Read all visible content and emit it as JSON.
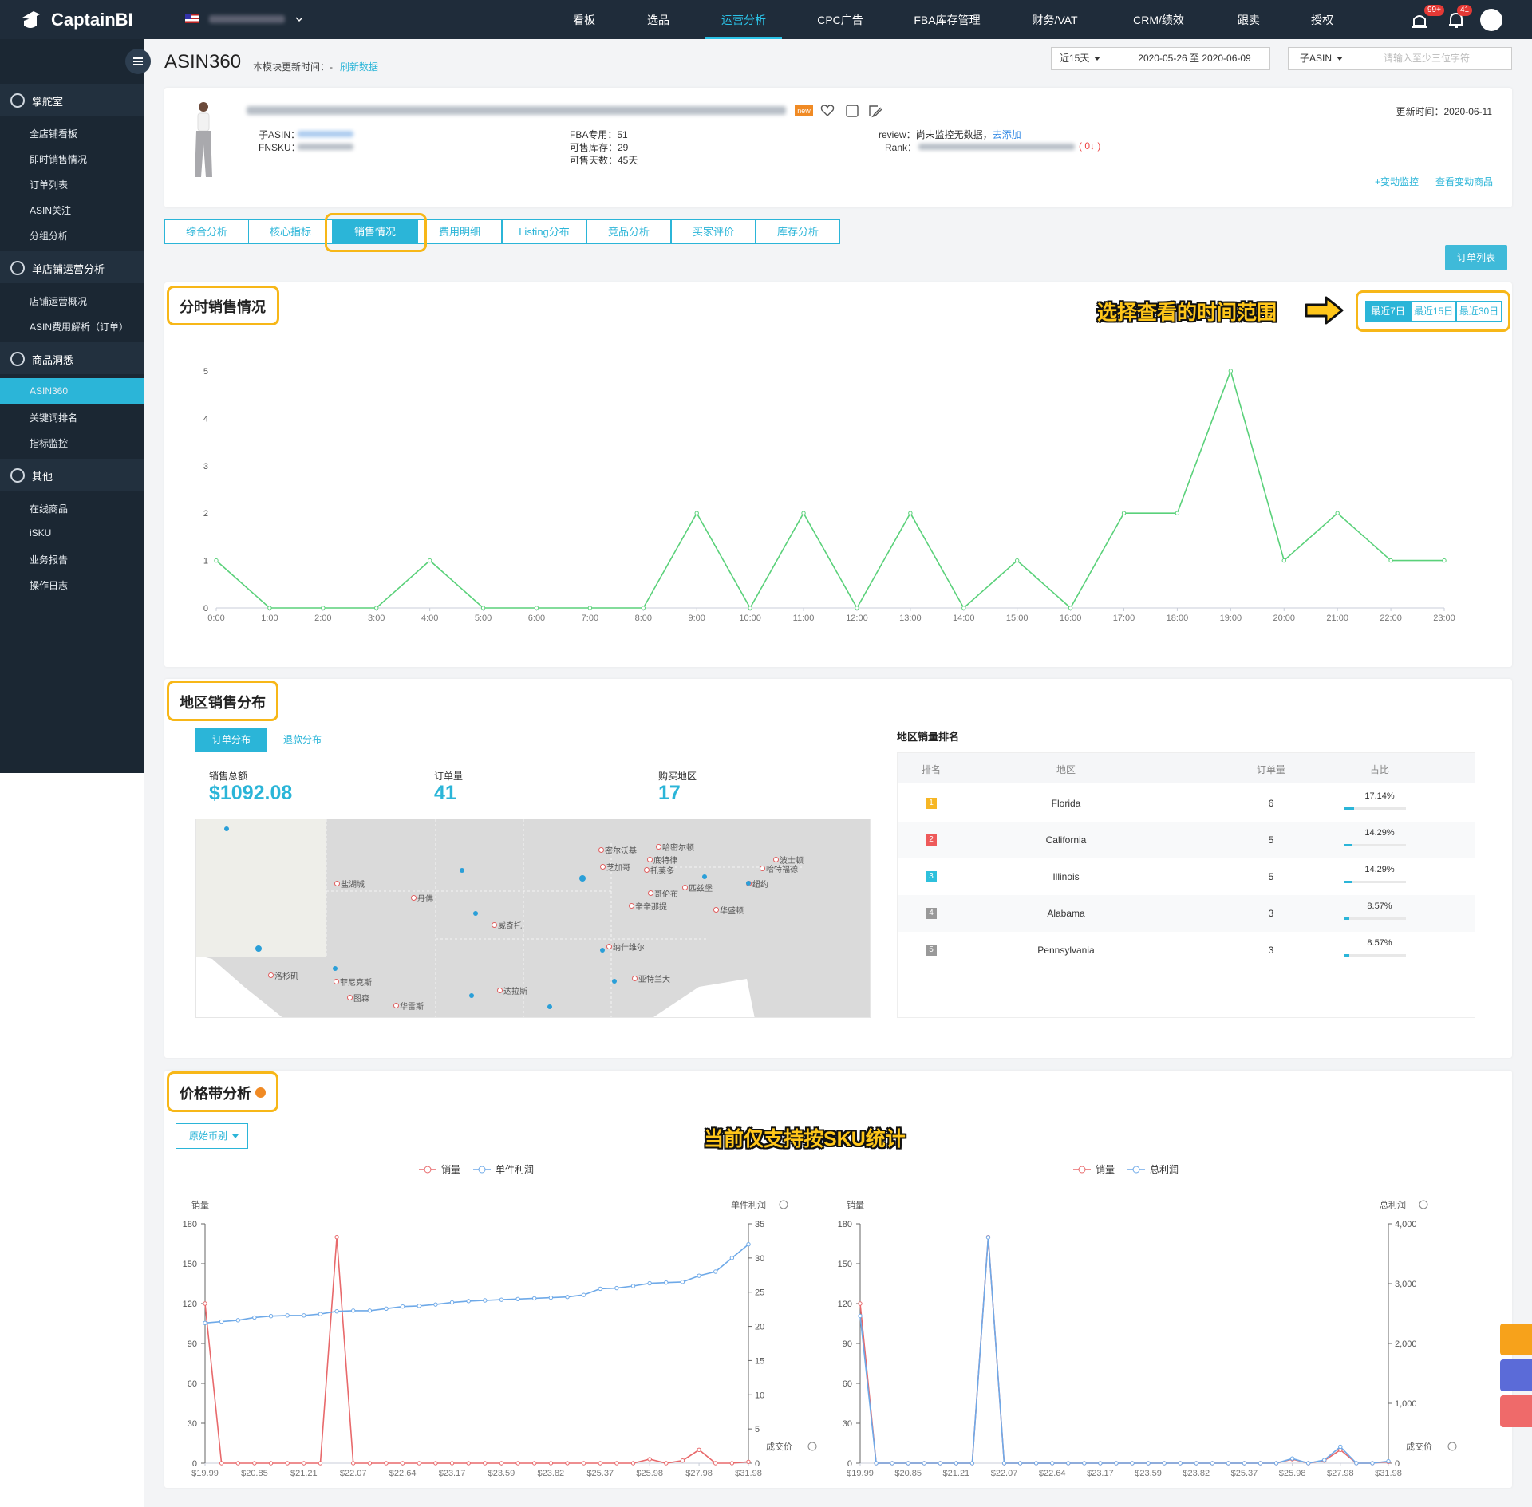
{
  "nav": {
    "logo": "CaptainBI",
    "items": [
      "看板",
      "选品",
      "运营分析",
      "CPC广告",
      "FBA库存管理",
      "财务/VAT",
      "CRM/绩效",
      "跟卖",
      "授权"
    ],
    "active": 2,
    "badges": [
      "99+",
      "41"
    ]
  },
  "sidebar": {
    "groups": [
      {
        "title": "掌舵室",
        "items": [
          "全店铺看板",
          "即时销售情况",
          "订单列表",
          "ASIN关注",
          "分组分析"
        ]
      },
      {
        "title": "单店铺运营分析",
        "items": [
          "店铺运营概况",
          "ASIN费用解析（订单）"
        ]
      },
      {
        "title": "商品洞悉",
        "items": [
          "ASIN360",
          "关键词排名",
          "指标监控"
        ]
      },
      {
        "title": "其他",
        "items": [
          "在线商品",
          "iSKU",
          "业务报告",
          "操作日志"
        ]
      }
    ],
    "active_group": 2,
    "active_item": 0
  },
  "header": {
    "title": "ASIN360",
    "update_label": "本模块更新时间：-",
    "refresh": "刷新数据",
    "range_select": "近15天",
    "date_range": "2020-05-26 至 2020-06-09",
    "asin_select": "子ASIN",
    "search_placeholder": "请输入至少三位字符"
  },
  "product": {
    "badge": "new",
    "asin_label": "子ASIN：",
    "fnsku_label": "FNSKU：",
    "fba": "FBA专用：51",
    "stock": "可售库存：29",
    "days": "可售天数：45天",
    "review": "review：尚未监控无数据，",
    "review_link": "去添加",
    "rank_label": "Rank：",
    "rank_change": "( 0↓ )",
    "updated": "更新时间：2020-06-11",
    "monitor": "+变动监控",
    "changes": "查看变动商品"
  },
  "tabs": {
    "items": [
      "综合分析",
      "核心指标",
      "销售情况",
      "费用明细",
      "Listing分布",
      "竞品分析",
      "买家评价",
      "库存分析"
    ],
    "active": 2
  },
  "order_list_button": "订单列表",
  "hourly": {
    "annotation": "选择查看的时间范围",
    "ranges": [
      "最近7日",
      "最近15日",
      "最近30日"
    ],
    "active": 0
  },
  "region": {
    "title": "地区销售分布",
    "tabs": [
      "订单分布",
      "退款分布"
    ],
    "active": 0,
    "stats": [
      {
        "label": "销售总额",
        "value": "$1092.08"
      },
      {
        "label": "订单量",
        "value": "41"
      },
      {
        "label": "购买地区",
        "value": "17"
      }
    ],
    "map_cities": [
      "密尔沃基",
      "芝加哥",
      "底特律",
      "托莱多",
      "哈密尔顿",
      "波士顿",
      "哈特福德",
      "纽约",
      "匹兹堡",
      "哥伦布",
      "辛辛那提",
      "华盛顿",
      "盐湖城",
      "丹佛",
      "威奇托",
      "纳什维尔",
      "亚特兰大",
      "洛杉矶",
      "菲尼克斯",
      "图森",
      "达拉斯",
      "华雷斯"
    ],
    "ranking": {
      "title": "地区销量排名",
      "columns": [
        "排名",
        "地区",
        "订单量",
        "占比"
      ],
      "rows": [
        {
          "rank": 1,
          "region": "Florida",
          "orders": 6,
          "share": 17.14,
          "share_label": "17.14%"
        },
        {
          "rank": 2,
          "region": "California",
          "orders": 5,
          "share": 14.29,
          "share_label": "14.29%"
        },
        {
          "rank": 3,
          "region": "Illinois",
          "orders": 5,
          "share": 14.29,
          "share_label": "14.29%"
        },
        {
          "rank": 4,
          "region": "Alabama",
          "orders": 3,
          "share": 8.57,
          "share_label": "8.57%"
        },
        {
          "rank": 5,
          "region": "Pennsylvania",
          "orders": 3,
          "share": 8.57,
          "share_label": "8.57%"
        }
      ]
    }
  },
  "price": {
    "title": "价格带分析",
    "currency": "原始币别",
    "note": "当前仅支持按SKU统计"
  },
  "chart_data": [
    {
      "type": "line",
      "title": "分时销售情况",
      "color": "#5ad17a",
      "grid": false,
      "categories": [
        "0:00",
        "1:00",
        "2:00",
        "3:00",
        "4:00",
        "5:00",
        "6:00",
        "7:00",
        "8:00",
        "9:00",
        "10:00",
        "11:00",
        "12:00",
        "13:00",
        "14:00",
        "15:00",
        "16:00",
        "17:00",
        "18:00",
        "19:00",
        "20:00",
        "21:00",
        "22:00",
        "23:00"
      ],
      "values": [
        1,
        0,
        0,
        0,
        1,
        0,
        0,
        0,
        0,
        2,
        0,
        2,
        0,
        2,
        0,
        1,
        0,
        2,
        2,
        5,
        1,
        2,
        1,
        1
      ],
      "ylim": [
        0,
        5
      ],
      "yticks": [
        0,
        1,
        2,
        3,
        4,
        5
      ]
    },
    {
      "type": "line",
      "grid": false,
      "ylabel": "销量",
      "y2label": "单件利润",
      "xlabel": "成交价",
      "categories": [
        "$19.99",
        null,
        null,
        "$20.85",
        null,
        null,
        "$21.21",
        null,
        null,
        "$22.07",
        null,
        null,
        "$22.64",
        null,
        null,
        "$23.17",
        null,
        null,
        "$23.59",
        null,
        null,
        "$23.82",
        null,
        null,
        "$25.37",
        null,
        null,
        "$25.98",
        null,
        null,
        "$27.98",
        null,
        null,
        "$31.98"
      ],
      "series": [
        {
          "name": "销量",
          "color": "#e8696b",
          "values": [
            120,
            0,
            0,
            0,
            0,
            0,
            0,
            0,
            170,
            0,
            0,
            0,
            0,
            0,
            0,
            0,
            0,
            0,
            0,
            0,
            0,
            0,
            0,
            0,
            0,
            0,
            0,
            3,
            0,
            2,
            10,
            0,
            0,
            1
          ]
        },
        {
          "name": "单件利润",
          "color": "#6ea9e8",
          "axis": "y2",
          "values": [
            20.5,
            20.7,
            20.9,
            21.3,
            21.5,
            21.6,
            21.6,
            21.8,
            22.2,
            22.3,
            22.3,
            22.6,
            22.9,
            23.0,
            23.2,
            23.5,
            23.7,
            23.8,
            23.9,
            24.0,
            24.1,
            24.2,
            24.3,
            24.6,
            25.5,
            25.6,
            25.9,
            26.3,
            26.4,
            26.5,
            27.4,
            28.0,
            30.0,
            32.0
          ]
        }
      ],
      "ylim": [
        0,
        180
      ],
      "yticks": [
        0,
        30,
        60,
        90,
        120,
        150,
        180
      ],
      "y2lim": [
        0,
        35
      ],
      "y2ticks": [
        0,
        5,
        10,
        15,
        20,
        25,
        30,
        35
      ]
    },
    {
      "type": "line",
      "grid": false,
      "ylabel": "销量",
      "y2label": "总利润",
      "xlabel": "成交价",
      "categories": [
        "$19.99",
        null,
        null,
        "$20.85",
        null,
        null,
        "$21.21",
        null,
        null,
        "$22.07",
        null,
        null,
        "$22.64",
        null,
        null,
        "$23.17",
        null,
        null,
        "$23.59",
        null,
        null,
        "$23.82",
        null,
        null,
        "$25.37",
        null,
        null,
        "$25.98",
        null,
        null,
        "$27.98",
        null,
        null,
        "$31.98"
      ],
      "series": [
        {
          "name": "销量",
          "color": "#e8696b",
          "values": [
            120,
            0,
            0,
            0,
            0,
            0,
            0,
            0,
            170,
            0,
            0,
            0,
            0,
            0,
            0,
            0,
            0,
            0,
            0,
            0,
            0,
            0,
            0,
            0,
            0,
            0,
            0,
            3,
            0,
            2,
            10,
            0,
            0,
            1
          ]
        },
        {
          "name": "总利润",
          "color": "#6ea9e8",
          "axis": "y2",
          "values": [
            2460,
            0,
            0,
            0,
            0,
            0,
            0,
            0,
            3774,
            0,
            0,
            0,
            0,
            0,
            0,
            0,
            0,
            0,
            0,
            0,
            0,
            0,
            0,
            0,
            0,
            0,
            0,
            78,
            0,
            53,
            274,
            0,
            0,
            32
          ]
        }
      ],
      "ylim": [
        0,
        180
      ],
      "yticks": [
        0,
        30,
        60,
        90,
        120,
        150,
        180
      ],
      "y2lim": [
        0,
        4000
      ],
      "y2ticks": [
        0,
        {
          "value": 1000,
          "label": "1,000"
        },
        {
          "value": 2000,
          "label": "2,000"
        },
        {
          "value": 3000,
          "label": "3,000"
        },
        {
          "value": 4000,
          "label": "4,000"
        }
      ]
    }
  ]
}
